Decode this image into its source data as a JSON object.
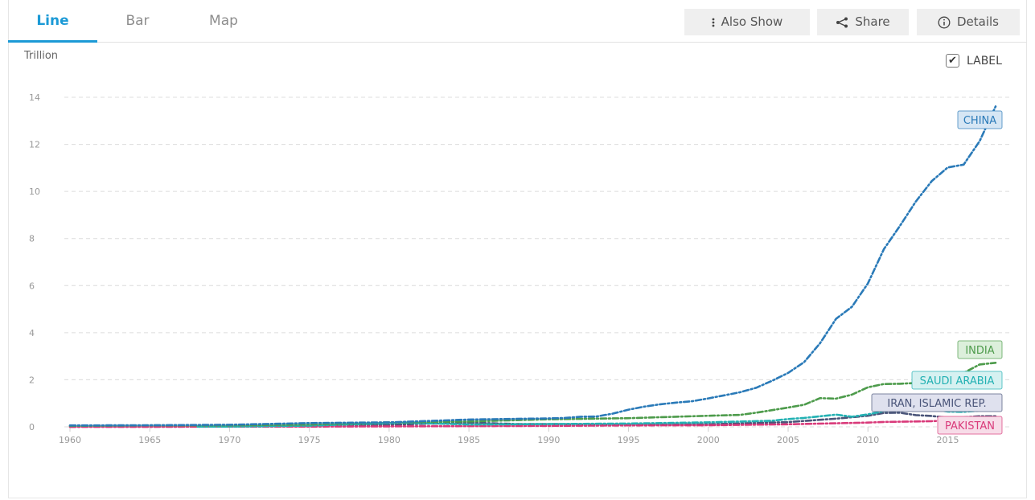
{
  "tabs": [
    {
      "label": "Line",
      "active": true
    },
    {
      "label": "Bar",
      "active": false
    },
    {
      "label": "Map",
      "active": false
    }
  ],
  "toolbar": {
    "also_show": "Also Show",
    "share": "Share",
    "details": "Details"
  },
  "label_toggle": {
    "label": "LABEL",
    "checked": true
  },
  "unit_label": "Trillion",
  "chart_data": {
    "type": "line",
    "xlabel": "",
    "ylabel": "Trillion",
    "xlim": [
      1960,
      2018
    ],
    "ylim": [
      0,
      14
    ],
    "yticks": [
      0,
      2,
      4,
      6,
      8,
      10,
      12,
      14
    ],
    "xticks": [
      1960,
      1965,
      1970,
      1975,
      1980,
      1985,
      1990,
      1995,
      2000,
      2005,
      2010,
      2015
    ],
    "grid": true,
    "series": [
      {
        "name": "CHINA",
        "color": "#2a7ab8",
        "label_bg": "#d6e6f4",
        "x": [
          1960,
          1965,
          1970,
          1975,
          1980,
          1985,
          1990,
          1991,
          1992,
          1993,
          1994,
          1995,
          1996,
          1997,
          1998,
          1999,
          2000,
          2001,
          2002,
          2003,
          2004,
          2005,
          2006,
          2007,
          2008,
          2009,
          2010,
          2011,
          2012,
          2013,
          2014,
          2015,
          2016,
          2017,
          2018
        ],
        "values": [
          0.06,
          0.07,
          0.09,
          0.16,
          0.19,
          0.31,
          0.36,
          0.38,
          0.43,
          0.44,
          0.56,
          0.73,
          0.86,
          0.96,
          1.03,
          1.09,
          1.21,
          1.34,
          1.47,
          1.66,
          1.96,
          2.29,
          2.75,
          3.55,
          4.59,
          5.1,
          6.09,
          7.55,
          8.53,
          9.57,
          10.44,
          11.02,
          11.14,
          12.14,
          13.61
        ]
      },
      {
        "name": "INDIA",
        "color": "#4d9b4b",
        "label_bg": "#dcefdb",
        "x": [
          1960,
          1965,
          1970,
          1975,
          1980,
          1985,
          1990,
          1995,
          2000,
          2002,
          2003,
          2004,
          2005,
          2006,
          2007,
          2008,
          2009,
          2010,
          2011,
          2012,
          2013,
          2014,
          2015,
          2016,
          2017,
          2018
        ],
        "values": [
          0.04,
          0.06,
          0.06,
          0.1,
          0.19,
          0.23,
          0.32,
          0.37,
          0.47,
          0.51,
          0.6,
          0.71,
          0.82,
          0.94,
          1.22,
          1.2,
          1.37,
          1.68,
          1.82,
          1.83,
          1.86,
          2.04,
          2.1,
          2.29,
          2.65,
          2.72
        ]
      },
      {
        "name": "SAUDI ARABIA",
        "color": "#23b1b3",
        "label_bg": "#d6f1f1",
        "x": [
          1968,
          1970,
          1975,
          1980,
          1981,
          1985,
          1990,
          1995,
          2000,
          2004,
          2005,
          2006,
          2008,
          2009,
          2010,
          2011,
          2012,
          2013,
          2014,
          2015,
          2016,
          2017,
          2018
        ],
        "values": [
          0.01,
          0.01,
          0.05,
          0.16,
          0.18,
          0.1,
          0.12,
          0.14,
          0.19,
          0.26,
          0.33,
          0.38,
          0.52,
          0.43,
          0.53,
          0.67,
          0.74,
          0.75,
          0.76,
          0.65,
          0.64,
          0.69,
          0.78
        ]
      },
      {
        "name": "IRAN, ISLAMIC REP.",
        "color": "#4a5579",
        "label_bg": "#dfe1ee",
        "x": [
          1960,
          1965,
          1970,
          1975,
          1977,
          1980,
          1985,
          1988,
          1990,
          1995,
          2000,
          2005,
          2008,
          2010,
          2011,
          2012,
          2013,
          2014,
          2015,
          2016,
          2017,
          2018
        ],
        "values": [
          0.004,
          0.006,
          0.01,
          0.05,
          0.08,
          0.09,
          0.18,
          0.12,
          0.12,
          0.09,
          0.11,
          0.2,
          0.35,
          0.47,
          0.59,
          0.6,
          0.5,
          0.46,
          0.39,
          0.4,
          0.45,
          0.45
        ]
      },
      {
        "name": "PAKISTAN",
        "color": "#d93a7a",
        "label_bg": "#f7dce8",
        "x": [
          1960,
          1965,
          1970,
          1975,
          1980,
          1985,
          1990,
          1995,
          2000,
          2005,
          2010,
          2011,
          2012,
          2013,
          2014,
          2015,
          2016,
          2017,
          2018
        ],
        "values": [
          0.004,
          0.005,
          0.01,
          0.01,
          0.02,
          0.03,
          0.04,
          0.06,
          0.07,
          0.11,
          0.18,
          0.21,
          0.22,
          0.23,
          0.24,
          0.27,
          0.28,
          0.3,
          0.31
        ]
      }
    ]
  }
}
